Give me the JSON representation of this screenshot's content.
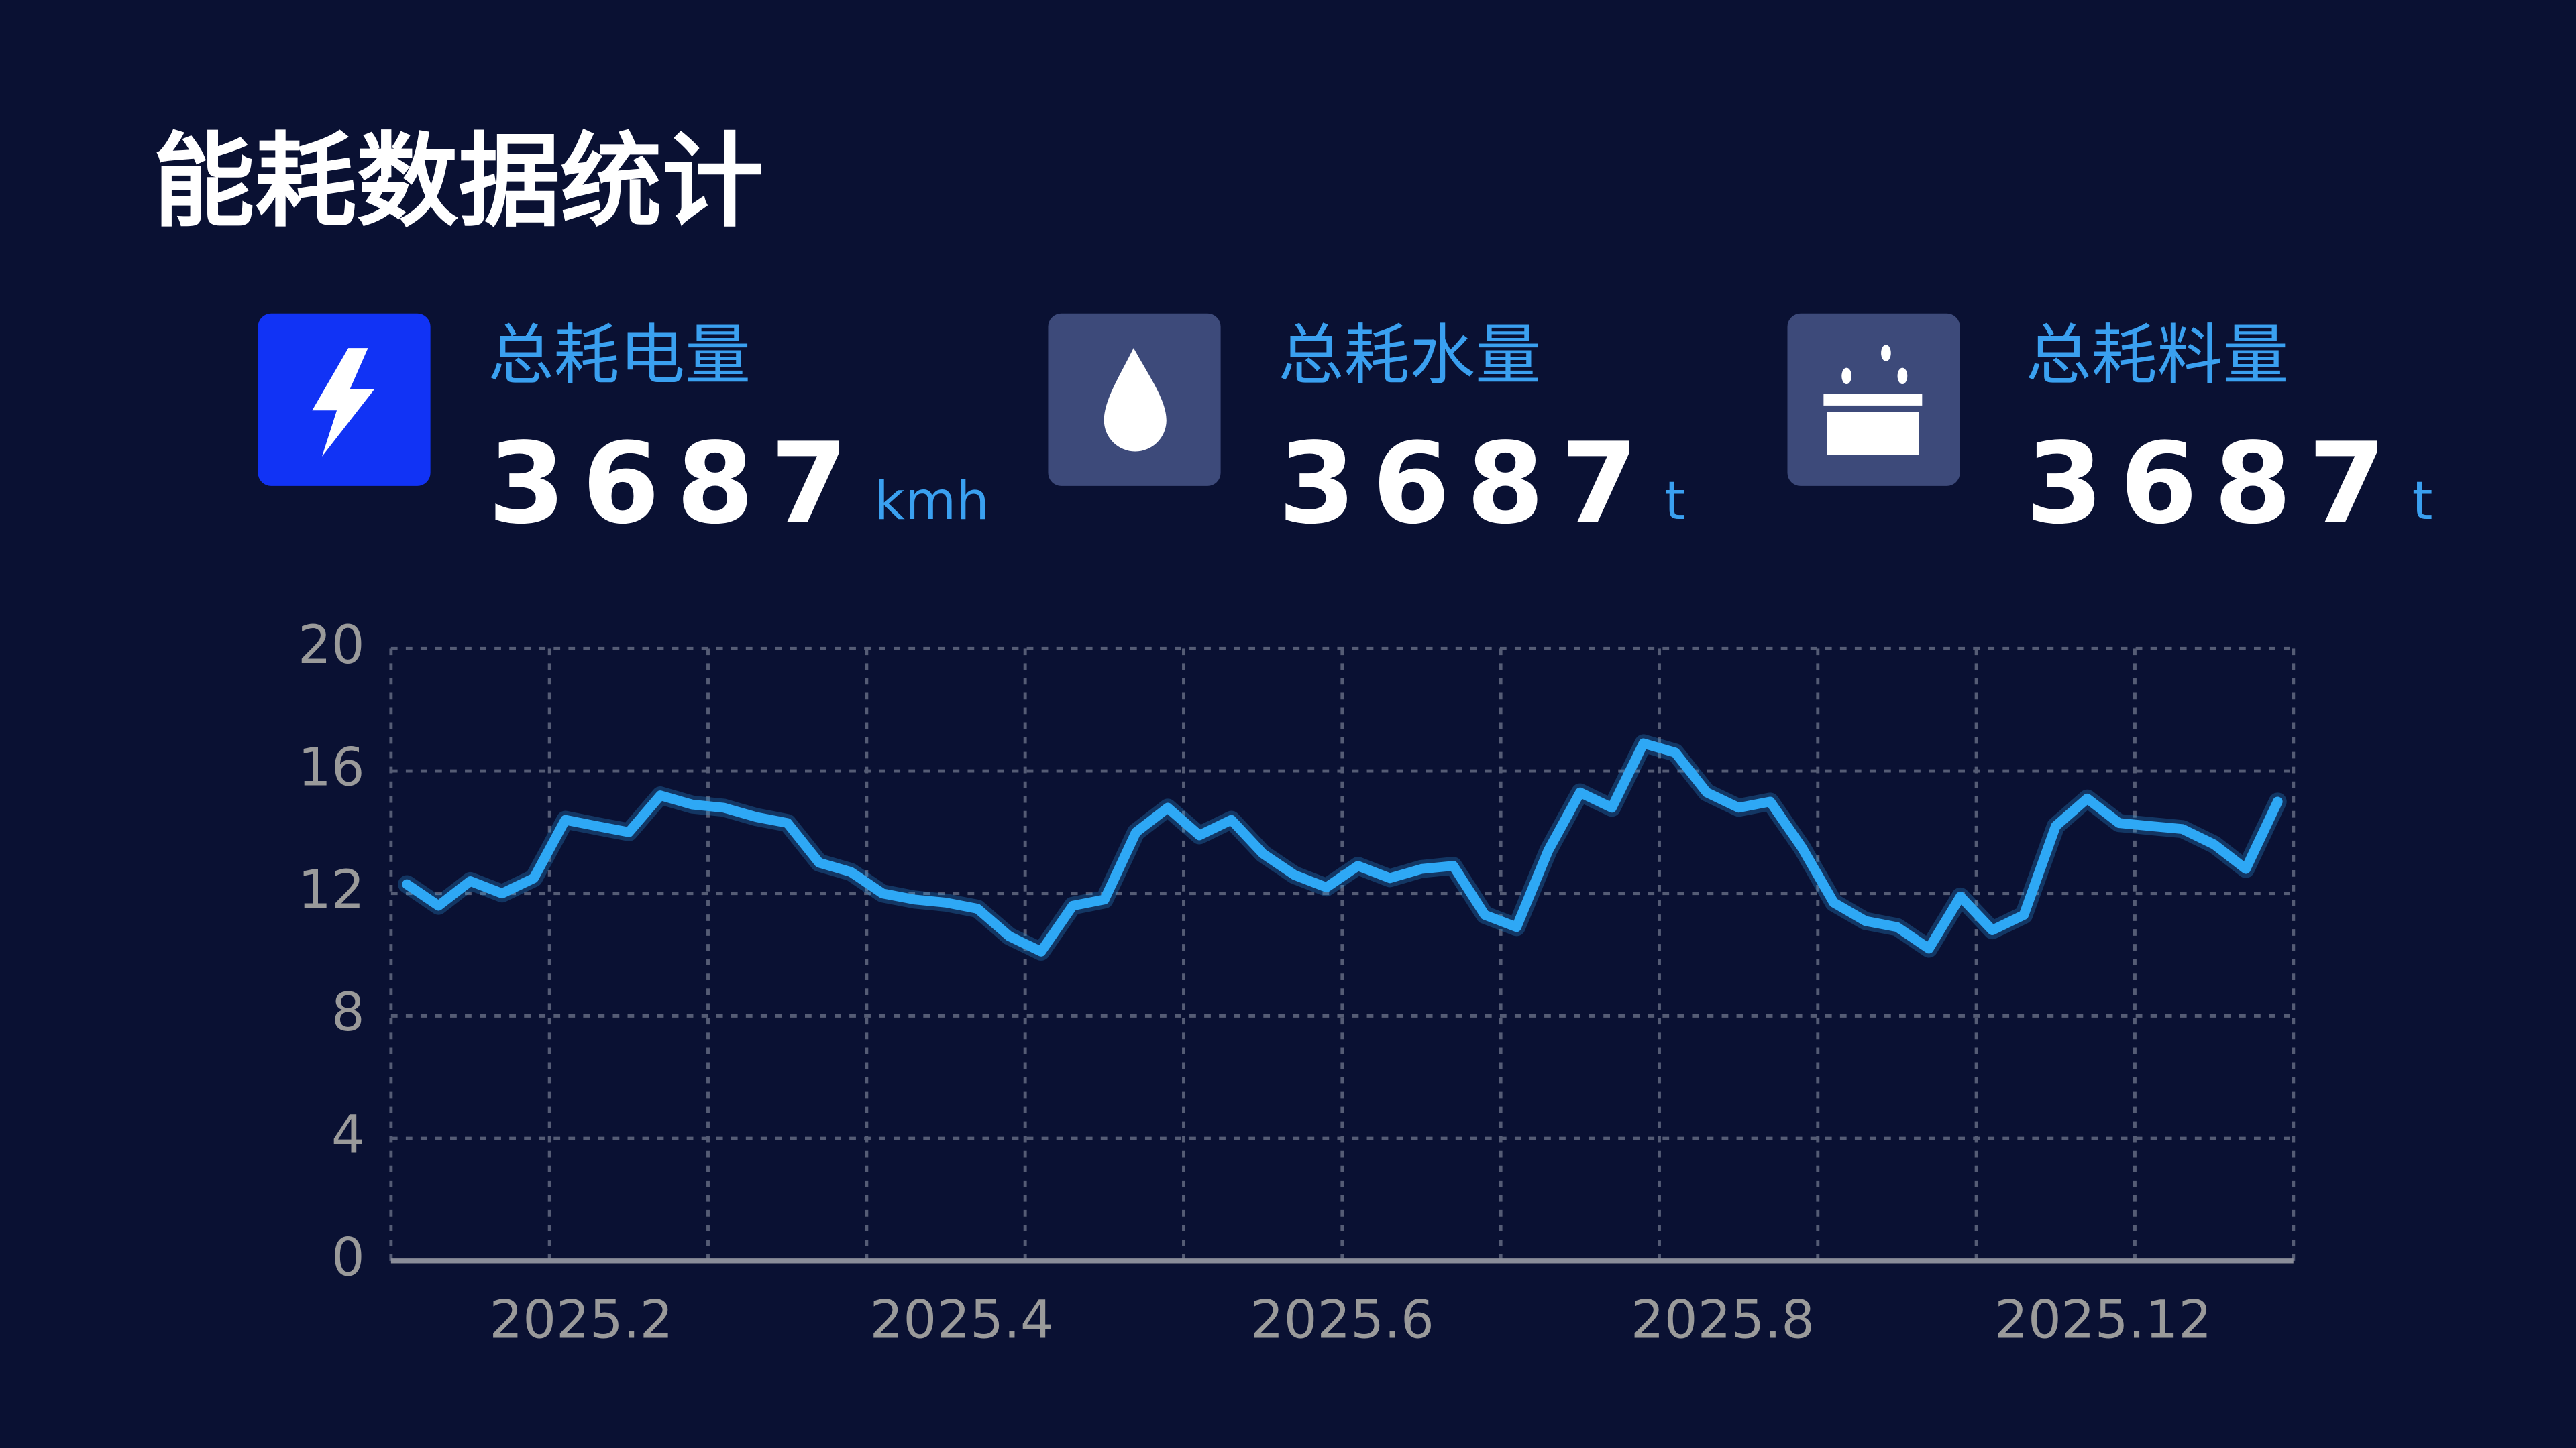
{
  "title": "能耗数据统计",
  "stats": [
    {
      "label": "总耗电量",
      "value": 3687,
      "unit": "kmh"
    },
    {
      "label": "总耗水量",
      "value": 3687,
      "unit": "t"
    },
    {
      "label": "总耗料量",
      "value": 3687,
      "unit": "t"
    }
  ],
  "chart_data": {
    "type": "line",
    "x": [
      1,
      3,
      5,
      7,
      9,
      11,
      13,
      15,
      17,
      19,
      21,
      23,
      25,
      27,
      29,
      31,
      33,
      35,
      37,
      39,
      41,
      43,
      45,
      47,
      49,
      51,
      53,
      55,
      57,
      59,
      61,
      63,
      65,
      67,
      69,
      71,
      73,
      75,
      77,
      79,
      81,
      83,
      85,
      87,
      89,
      91,
      93,
      95,
      97,
      99,
      101,
      103,
      105,
      107,
      109,
      111,
      113,
      115,
      117,
      119
    ],
    "series": [
      {
        "color": "#2ea8f5",
        "values": [
          12.3,
          11.6,
          12.4,
          12.0,
          12.5,
          14.4,
          14.2,
          14.0,
          15.2,
          14.9,
          14.8,
          14.5,
          14.3,
          13.0,
          12.7,
          12.0,
          11.8,
          11.7,
          11.5,
          10.6,
          10.1,
          11.6,
          11.8,
          14.0,
          14.8,
          13.9,
          14.4,
          13.3,
          12.6,
          12.2,
          12.9,
          12.5,
          12.8,
          12.9,
          11.3,
          10.9,
          13.4,
          15.3,
          14.8,
          16.9,
          16.6,
          15.3,
          14.8,
          15.0,
          13.5,
          11.7,
          11.1,
          10.9,
          10.2,
          11.9,
          10.8,
          11.3,
          14.2,
          15.1,
          14.3,
          14.2,
          14.1,
          13.6,
          12.8,
          15.0
        ]
      }
    ],
    "xlim": [
      0,
      120
    ],
    "xticks": [
      {
        "value": 12,
        "label": "2025.2"
      },
      {
        "value": 36,
        "label": "2025.4"
      },
      {
        "value": 60,
        "label": "2025.6"
      },
      {
        "value": 84,
        "label": "2025.8"
      },
      {
        "value": 108,
        "label": "2025.12"
      }
    ],
    "xgrid": [
      0,
      10,
      20,
      30,
      40,
      50,
      60,
      70,
      80,
      90,
      100,
      110,
      120
    ],
    "ylim": [
      0,
      20
    ],
    "yticks": [
      0,
      4,
      8,
      12,
      16,
      20
    ],
    "grid": true
  }
}
